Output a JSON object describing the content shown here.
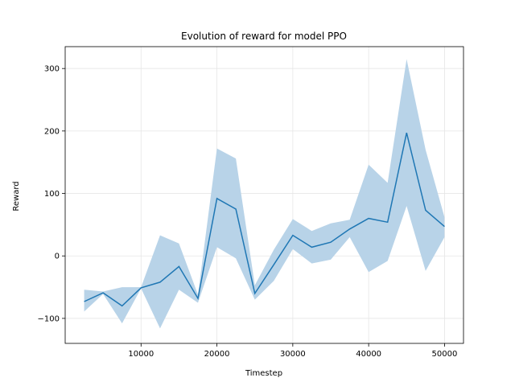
{
  "chart_data": {
    "type": "line",
    "title": "Evolution of reward for model PPO",
    "xlabel": "Timestep",
    "ylabel": "Reward",
    "xlim": [
      0,
      52500
    ],
    "ylim": [
      -140,
      335
    ],
    "xticks": [
      10000,
      20000,
      30000,
      40000,
      50000
    ],
    "yticks": [
      -100,
      0,
      100,
      200,
      300
    ],
    "grid": true,
    "legend": "none",
    "line_color": "#1f77b4",
    "band_color": "#b8d3e8",
    "x": [
      2500,
      5000,
      7500,
      10000,
      12500,
      15000,
      17500,
      20000,
      22500,
      25000,
      27500,
      30000,
      32500,
      35000,
      37500,
      40000,
      42500,
      45000,
      47500,
      50000
    ],
    "mean": [
      -73,
      -59,
      -80,
      -51,
      -42,
      -17,
      -68,
      92,
      75,
      -60,
      -14,
      33,
      14,
      22,
      43,
      60,
      54,
      197,
      73,
      47
    ],
    "upper": [
      -54,
      -57,
      -50,
      -50,
      33,
      20,
      -62,
      172,
      156,
      -47,
      10,
      59,
      40,
      52,
      58,
      146,
      117,
      315,
      170,
      62
    ],
    "lower": [
      -89,
      -61,
      -108,
      -52,
      -116,
      -54,
      -75,
      14,
      -4,
      -70,
      -40,
      11,
      -12,
      -6,
      30,
      -26,
      -8,
      80,
      -24,
      30
    ]
  }
}
